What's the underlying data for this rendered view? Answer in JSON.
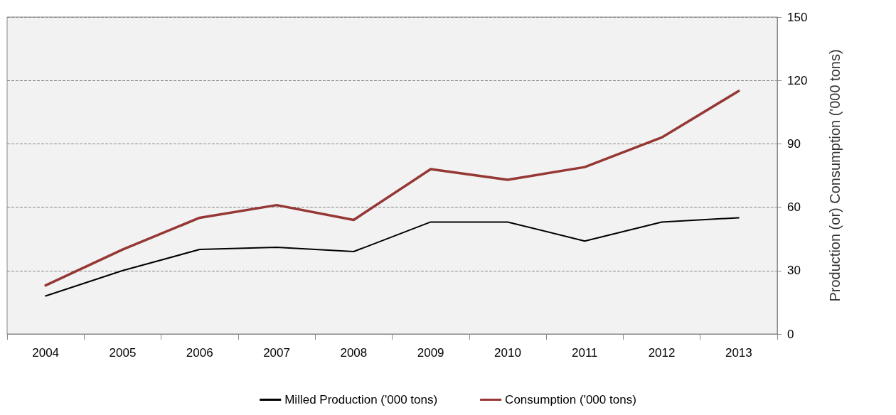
{
  "chart_data": {
    "type": "line",
    "categories": [
      "2004",
      "2005",
      "2006",
      "2007",
      "2008",
      "2009",
      "2010",
      "2011",
      "2012",
      "2013"
    ],
    "series": [
      {
        "name": "Milled Production ('000 tons)",
        "color": "#000000",
        "values": [
          18,
          30,
          40,
          41,
          39,
          53,
          53,
          44,
          53,
          55
        ]
      },
      {
        "name": "Consumption ('000 tons)",
        "color": "#953735",
        "values": [
          23,
          40,
          55,
          61,
          54,
          78,
          73,
          79,
          93,
          115
        ]
      }
    ],
    "ylabel": "Production (or) Consumption ('000 tons)",
    "ylim": [
      0,
      150
    ],
    "yticks": [
      0,
      30,
      60,
      90,
      120,
      150
    ],
    "grid": "y",
    "legend": "bottom",
    "marker": "none",
    "line_style": "solid"
  }
}
